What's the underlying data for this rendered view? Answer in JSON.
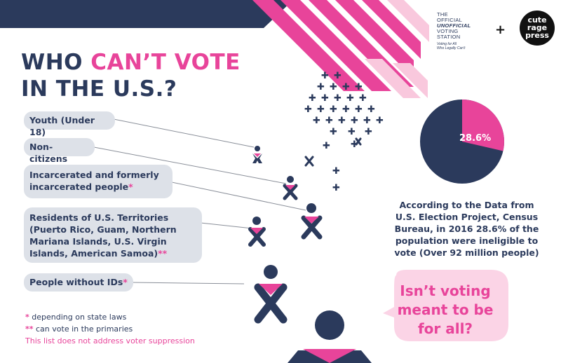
{
  "title": {
    "line1_part1": "WHO ",
    "line1_highlight": "CAN’T VOTE",
    "line2": "IN THE U.S.?"
  },
  "groups": [
    {
      "label": "Youth (Under 18)",
      "marker": ""
    },
    {
      "label": "Non-citizens",
      "marker": ""
    },
    {
      "label": "Incarcerated and formerly incarcerated people",
      "marker": "*"
    },
    {
      "label": "Residents of U.S. Territories (Puerto Rico, Guam, Northern Mariana Islands, U.S. Virgin Islands, American Samoa)",
      "marker": "**"
    },
    {
      "label": "People without IDs",
      "marker": "*"
    }
  ],
  "notes": {
    "note1_mark": "*",
    "note1_text": " depending on state laws",
    "note2_mark": "**",
    "note2_text": " can vote in the primaries",
    "note3_text": "This list does not address voter suppression"
  },
  "stat": {
    "percent_label": "28.6%",
    "percent_value": 28.6,
    "description": "According to the Data from U.S. Election Project, Census Bureau, in 2016 28.6% of the population were ineligible to vote (Over 92 million people)"
  },
  "bubble": {
    "text": "Isn’t voting meant to be for all?"
  },
  "logo": {
    "line1": "The",
    "line2": "Official",
    "line3": "Unofficial",
    "line4": "Voting",
    "line5": "Station",
    "tagline1": "Voting for All",
    "tagline2": "Who Legally Can't",
    "plus": "+",
    "partner_line1": "cute",
    "partner_line2": "rage",
    "partner_line3": "press"
  },
  "colors": {
    "navy": "#2b3a5c",
    "pink": "#e8449a",
    "light_pink": "#f9c8dd",
    "pill_gray": "#dde1e8",
    "bubble_pink": "#fbd4e6"
  }
}
